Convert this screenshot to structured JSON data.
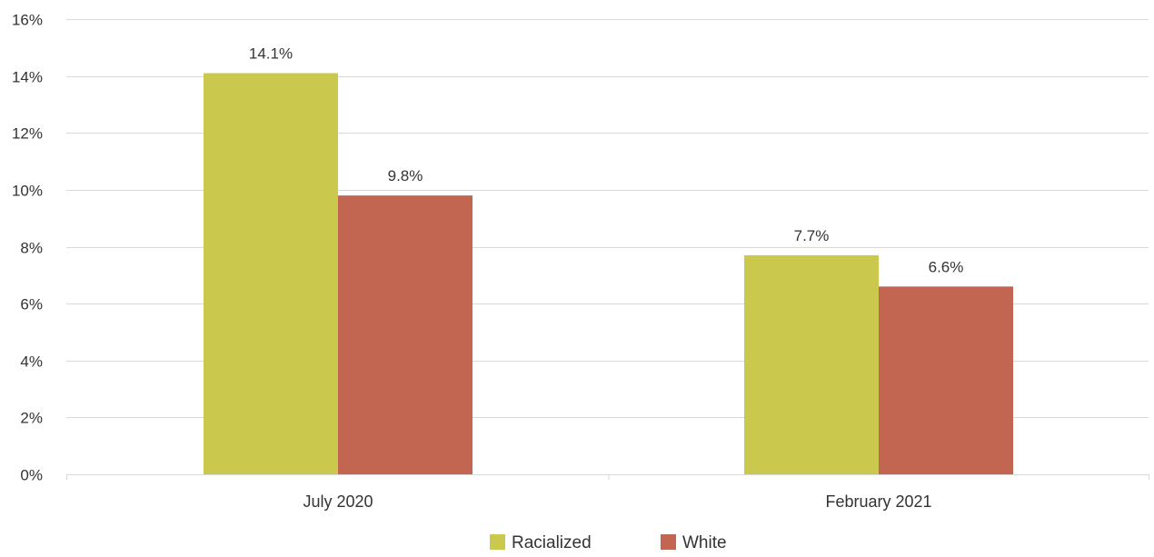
{
  "chart_data": {
    "type": "bar",
    "title": "",
    "xlabel": "",
    "ylabel": "",
    "categories": [
      "July 2020",
      "February 2021"
    ],
    "series": [
      {
        "name": "Racialized",
        "values": [
          14.1,
          7.7
        ],
        "labels": [
          "14.1%",
          "7.7%"
        ],
        "color": "#cbc84e"
      },
      {
        "name": "White",
        "values": [
          9.8,
          6.6
        ],
        "labels": [
          "9.8%",
          "6.6%"
        ],
        "color": "#c26651"
      }
    ],
    "ylim": [
      0,
      16
    ],
    "yticks": [
      0,
      2,
      4,
      6,
      8,
      10,
      12,
      14,
      16
    ],
    "ytick_labels": [
      "0%",
      "2%",
      "4%",
      "6%",
      "8%",
      "10%",
      "12%",
      "14%",
      "16%"
    ],
    "grid": true,
    "gridline_color": "#d9d9d9",
    "legend_position": "bottom-center"
  }
}
